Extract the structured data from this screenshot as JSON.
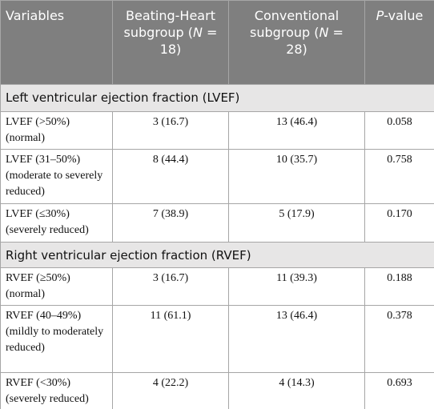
{
  "header": [
    [
      {
        "text": "Variables"
      }
    ],
    [
      {
        "text": "Beating-Heart subgroup ("
      },
      {
        "text": "N",
        "italic": true
      },
      {
        "text": " = 18)"
      }
    ],
    [
      {
        "text": "Conventional subgroup ("
      },
      {
        "text": "N",
        "italic": true
      },
      {
        "text": " = 28)"
      }
    ],
    [
      {
        "text": "P",
        "italic": true
      },
      {
        "text": "-value"
      }
    ]
  ],
  "sections": [
    {
      "title": "Left ventricular ejection fraction (LVEF)",
      "rows": [
        [
          "LVEF (>50%) (normal)",
          "3 (16.7)",
          "13 (46.4)",
          "0.058"
        ],
        [
          "LVEF (31–50%) (moderate to severely reduced)",
          "8 (44.4)",
          "10 (35.7)",
          "0.758"
        ],
        [
          "LVEF (≤30%) (severely reduced)",
          "7 (38.9)",
          "5 (17.9)",
          "0.170"
        ]
      ]
    },
    {
      "title": "Right ventricular ejection fraction (RVEF)",
      "rows": [
        [
          "RVEF (≥50%) (normal)",
          "3 (16.7)",
          "11 (39.3)",
          "0.188"
        ],
        [
          "RVEF (40–49%) (mildly to moderately reduced)",
          "11 (61.1)",
          "13 (46.4)",
          "0.378"
        ],
        [
          "RVEF (<30%) (severely reduced)",
          "4 (22.2)",
          "4 (14.3)",
          "0.693"
        ]
      ]
    }
  ]
}
